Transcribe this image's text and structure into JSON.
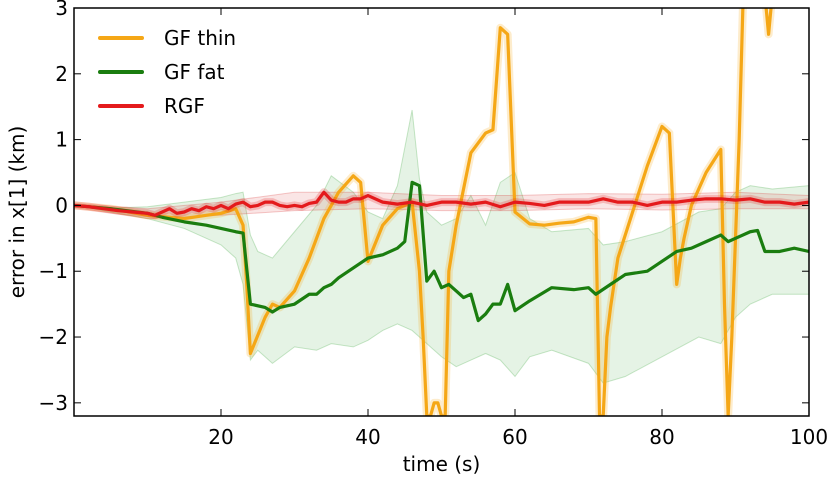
{
  "chart_data": {
    "type": "line",
    "xlabel": "time (s)",
    "ylabel": "error in x[1] (km)",
    "xlim": [
      0,
      100
    ],
    "ylim": [
      -3.2,
      3.0
    ],
    "xticks": [
      20,
      40,
      60,
      80,
      100
    ],
    "yticks": [
      -3,
      -2,
      -1,
      0,
      1,
      2,
      3
    ],
    "grid": false,
    "legend_position": "top-left",
    "bands": [
      {
        "name": "GF fat band",
        "color": "#2ca02c",
        "opacity": 0.12,
        "x": [
          0,
          5,
          10,
          15,
          20,
          22,
          23,
          24,
          25,
          27,
          30,
          33,
          35,
          38,
          40,
          42,
          44,
          46,
          47,
          48,
          50,
          52,
          54,
          56,
          58,
          60,
          62,
          65,
          70,
          72,
          75,
          80,
          85,
          88,
          90,
          92,
          95,
          100
        ],
        "upper": [
          0.0,
          -0.04,
          -0.02,
          0.05,
          0.12,
          0.18,
          0.2,
          -0.45,
          -0.7,
          -0.8,
          -0.4,
          0.0,
          0.45,
          0.2,
          -0.1,
          -0.2,
          0.3,
          1.45,
          0.4,
          -0.1,
          -0.3,
          -0.2,
          0.15,
          -0.3,
          0.35,
          0.5,
          -0.2,
          -0.4,
          -0.35,
          -0.6,
          -0.55,
          -0.4,
          -0.1,
          -0.05,
          0.2,
          0.3,
          0.25,
          0.3
        ],
        "lower": [
          0.0,
          -0.1,
          -0.2,
          -0.35,
          -0.6,
          -0.8,
          -1.2,
          -2.35,
          -2.2,
          -2.4,
          -2.15,
          -2.2,
          -2.1,
          -2.15,
          -2.05,
          -1.9,
          -1.8,
          -1.9,
          -2.0,
          -2.1,
          -2.3,
          -2.45,
          -2.35,
          -2.25,
          -2.35,
          -2.6,
          -2.3,
          -2.2,
          -2.4,
          -2.7,
          -2.6,
          -2.3,
          -2.0,
          -2.1,
          -1.7,
          -1.5,
          -1.35,
          -1.35
        ]
      },
      {
        "name": "RGF band",
        "color": "#d62728",
        "opacity": 0.12,
        "x": [
          0,
          10,
          20,
          30,
          40,
          50,
          60,
          70,
          80,
          90,
          100
        ],
        "upper": [
          0.03,
          -0.05,
          0.05,
          0.2,
          0.2,
          0.15,
          0.15,
          0.18,
          0.17,
          0.2,
          0.15
        ],
        "lower": [
          -0.03,
          -0.2,
          -0.15,
          -0.08,
          -0.05,
          -0.08,
          -0.08,
          -0.05,
          -0.07,
          -0.05,
          -0.05
        ]
      }
    ],
    "series": [
      {
        "name": "GF thin",
        "color": "#f5a716",
        "halo": true,
        "x": [
          0,
          5,
          10,
          15,
          18,
          20,
          22,
          23,
          23.5,
          24,
          26,
          27,
          28,
          30,
          32,
          34,
          36,
          38,
          39,
          40,
          42,
          44,
          46,
          47,
          47.5,
          48,
          48.5,
          49,
          49.5,
          50,
          50.5,
          51,
          52,
          54,
          56,
          57,
          58,
          59,
          60,
          62,
          64,
          66,
          68,
          70,
          71,
          71.5,
          72,
          72.5,
          73,
          74,
          76,
          78,
          80,
          81,
          82,
          82.5,
          83,
          84,
          86,
          88,
          88.5,
          89,
          89.5,
          90,
          90.5,
          91,
          92,
          93,
          94,
          94.5,
          95
        ],
        "y": [
          0.0,
          -0.05,
          -0.15,
          -0.2,
          -0.15,
          -0.12,
          -0.05,
          -0.3,
          -1.2,
          -2.25,
          -1.7,
          -1.5,
          -1.55,
          -1.3,
          -0.8,
          -0.2,
          0.2,
          0.45,
          0.35,
          -0.85,
          -0.3,
          -0.05,
          0.05,
          -1.0,
          -2.0,
          -3.2,
          -3.2,
          -3.0,
          -3.0,
          -3.2,
          -3.2,
          -1.0,
          -0.3,
          0.8,
          1.1,
          1.15,
          2.7,
          2.6,
          -0.1,
          -0.28,
          -0.3,
          -0.27,
          -0.25,
          -0.18,
          -0.2,
          -3.2,
          -3.2,
          -2.0,
          -1.55,
          -0.8,
          -0.1,
          0.6,
          1.2,
          1.1,
          -1.2,
          -0.8,
          -0.5,
          0.0,
          0.5,
          0.85,
          -1.5,
          -3.2,
          -2.0,
          -0.5,
          1.0,
          3.0,
          3.2,
          3.2,
          3.2,
          2.6,
          3.2
        ]
      },
      {
        "name": "GF fat",
        "color": "#1a7d0f",
        "halo": false,
        "x": [
          0,
          5,
          10,
          12,
          15,
          18,
          20,
          22,
          23,
          24,
          26,
          27,
          28,
          30,
          32,
          33,
          34,
          35,
          36,
          38,
          40,
          42,
          44,
          45,
          46,
          47,
          48,
          49,
          50,
          51,
          52,
          53,
          54,
          55,
          56,
          57,
          58,
          59,
          60,
          62,
          65,
          68,
          70,
          71,
          73,
          75,
          78,
          80,
          82,
          84,
          86,
          88,
          89,
          90,
          92,
          93,
          94,
          96,
          98,
          100
        ],
        "y": [
          0.0,
          -0.05,
          -0.12,
          -0.18,
          -0.25,
          -0.3,
          -0.35,
          -0.4,
          -0.42,
          -1.5,
          -1.55,
          -1.62,
          -1.55,
          -1.5,
          -1.35,
          -1.35,
          -1.25,
          -1.2,
          -1.1,
          -0.95,
          -0.8,
          -0.75,
          -0.65,
          -0.55,
          0.35,
          0.3,
          -1.15,
          -1.0,
          -1.25,
          -1.2,
          -1.3,
          -1.4,
          -1.35,
          -1.75,
          -1.65,
          -1.5,
          -1.5,
          -1.2,
          -1.6,
          -1.45,
          -1.25,
          -1.28,
          -1.25,
          -1.35,
          -1.2,
          -1.05,
          -1.0,
          -0.85,
          -0.7,
          -0.65,
          -0.55,
          -0.45,
          -0.55,
          -0.5,
          -0.4,
          -0.38,
          -0.7,
          -0.7,
          -0.65,
          -0.7
        ]
      },
      {
        "name": "RGF",
        "color": "#e41a1c",
        "halo": true,
        "x": [
          0,
          2,
          4,
          6,
          8,
          10,
          11,
          12,
          13,
          14,
          15,
          16,
          17,
          18,
          19,
          20,
          21,
          22,
          23,
          24,
          25,
          26,
          27,
          28,
          29,
          30,
          31,
          32,
          33,
          34,
          35,
          36,
          37,
          38,
          39,
          40,
          42,
          44,
          46,
          48,
          50,
          52,
          54,
          56,
          58,
          60,
          62,
          64,
          66,
          68,
          70,
          72,
          74,
          76,
          78,
          80,
          82,
          84,
          86,
          88,
          90,
          92,
          94,
          96,
          98,
          100
        ],
        "y": [
          0.0,
          -0.02,
          -0.05,
          -0.08,
          -0.1,
          -0.12,
          -0.15,
          -0.1,
          -0.05,
          -0.12,
          -0.1,
          -0.05,
          -0.08,
          -0.02,
          -0.05,
          0.0,
          -0.05,
          0.02,
          0.05,
          -0.02,
          0.0,
          0.05,
          0.05,
          0.0,
          -0.02,
          0.0,
          -0.02,
          0.03,
          0.05,
          0.2,
          0.08,
          0.05,
          0.05,
          0.1,
          0.1,
          0.15,
          0.05,
          0.02,
          0.05,
          0.0,
          0.05,
          0.05,
          0.02,
          0.05,
          -0.02,
          0.05,
          0.03,
          0.0,
          0.05,
          0.05,
          0.05,
          0.1,
          0.05,
          0.05,
          0.0,
          0.05,
          0.05,
          0.08,
          0.1,
          0.1,
          0.08,
          0.1,
          0.05,
          0.05,
          0.02,
          0.05
        ]
      }
    ]
  }
}
